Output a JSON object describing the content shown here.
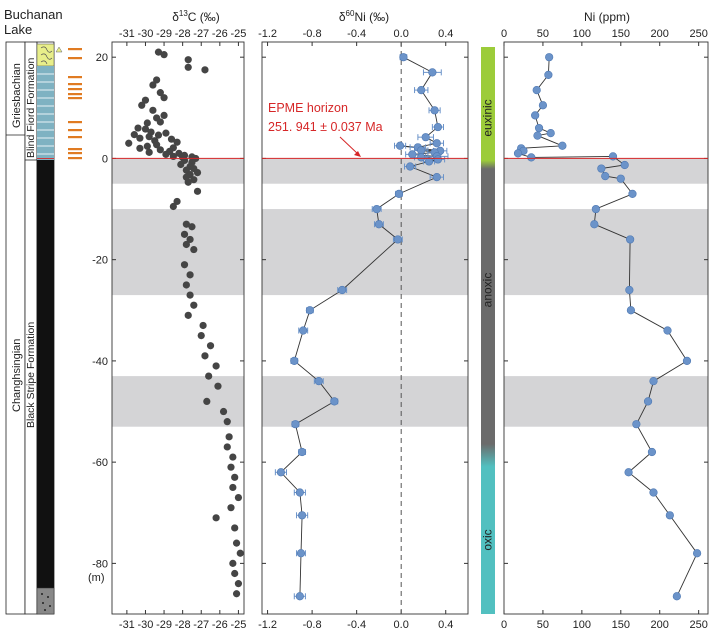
{
  "strat": {
    "location_line1": "Buchanan",
    "location_line2": "Lake",
    "stage_upper": "Griesbachian",
    "stage_lower": "Changhsingian",
    "formation_upper": "Blind Fiord Formation",
    "formation_lower": "Black Stripe Formation"
  },
  "depth_axis": {
    "ticks": [
      20,
      0,
      -20,
      -40,
      -60,
      -80
    ],
    "unit_label": "(m)",
    "range": [
      -90,
      23
    ]
  },
  "epme": {
    "label_line1": "EPME horizon",
    "label_line2": "251. 941 ± 0.037 Ma",
    "depth": 0,
    "color": "#d62728"
  },
  "grey_bands": [
    [
      -5,
      0
    ],
    [
      -27,
      -10
    ],
    [
      -53,
      -43
    ]
  ],
  "redox": {
    "labels": [
      "euxinic",
      "anoxic",
      "oxic"
    ],
    "colors": {
      "euxinic": "#9ccc3a",
      "anoxic": "#6b6b6b",
      "oxic": "#52c0c0"
    }
  },
  "chart_data": [
    {
      "type": "scatter",
      "title": "δ13C (‰)",
      "title_base": "δ",
      "title_sup": "13",
      "title_rest": "C (‰)",
      "xlim": [
        -31.8,
        -24.7
      ],
      "ticks": [
        -31,
        -30,
        -29,
        -28,
        -27,
        -26,
        -25
      ],
      "tick_labels": [
        "-31",
        "-30",
        "-29",
        "-28",
        "-27",
        "-26",
        "-25"
      ],
      "color": "#454545",
      "points": [
        [
          -29.3,
          21
        ],
        [
          -29.0,
          20.5
        ],
        [
          -27.7,
          19.5
        ],
        [
          -27.7,
          18
        ],
        [
          -26.8,
          17.5
        ],
        [
          -29.4,
          15.5
        ],
        [
          -29.6,
          14.5
        ],
        [
          -29.2,
          13
        ],
        [
          -29.0,
          12
        ],
        [
          -30.0,
          11.5
        ],
        [
          -30.2,
          10.5
        ],
        [
          -29.6,
          9.5
        ],
        [
          -29.0,
          8.5
        ],
        [
          -29.4,
          8
        ],
        [
          -29.2,
          7.2
        ],
        [
          -29.9,
          7
        ],
        [
          -30.4,
          6
        ],
        [
          -30.0,
          5.8
        ],
        [
          -29.7,
          5.2
        ],
        [
          -28.9,
          5
        ],
        [
          -30.6,
          4.7
        ],
        [
          -29.3,
          4.6
        ],
        [
          -29.8,
          4.3
        ],
        [
          -30.3,
          4
        ],
        [
          -28.6,
          3.8
        ],
        [
          -29.5,
          3.5
        ],
        [
          -30.9,
          3
        ],
        [
          -28.3,
          3.2
        ],
        [
          -29.4,
          2.7
        ],
        [
          -29.9,
          2.4
        ],
        [
          -28.5,
          2.1
        ],
        [
          -30.3,
          2
        ],
        [
          -29.2,
          1.7
        ],
        [
          -28.7,
          1.4
        ],
        [
          -29.8,
          1.2
        ],
        [
          -28.2,
          1
        ],
        [
          -28.9,
          0.8
        ],
        [
          -27.9,
          0.6
        ],
        [
          -28.5,
          0.4
        ],
        [
          -27.5,
          0.3
        ],
        [
          -28.0,
          0.2
        ],
        [
          -27.3,
          0
        ],
        [
          -27.9,
          -0.4
        ],
        [
          -27.5,
          -0.8
        ],
        [
          -28.1,
          -1.2
        ],
        [
          -27.6,
          -1.6
        ],
        [
          -27.4,
          -2
        ],
        [
          -27.8,
          -2.3
        ],
        [
          -27.2,
          -2.8
        ],
        [
          -27.6,
          -3.2
        ],
        [
          -27.8,
          -3.7
        ],
        [
          -27.4,
          -4.2
        ],
        [
          -27.7,
          -4.7
        ],
        [
          -27.2,
          -6.5
        ],
        [
          -28.3,
          -8.5
        ],
        [
          -28.5,
          -9.5
        ],
        [
          -27.8,
          -13
        ],
        [
          -27.5,
          -13.5
        ],
        [
          -27.9,
          -15
        ],
        [
          -27.6,
          -16
        ],
        [
          -27.8,
          -17
        ],
        [
          -27.4,
          -18
        ],
        [
          -27.9,
          -21
        ],
        [
          -27.6,
          -23
        ],
        [
          -27.8,
          -25
        ],
        [
          -27.6,
          -27
        ],
        [
          -27.4,
          -29
        ],
        [
          -27.7,
          -31
        ],
        [
          -26.9,
          -33
        ],
        [
          -27.0,
          -35
        ],
        [
          -26.5,
          -37
        ],
        [
          -26.8,
          -39
        ],
        [
          -26.2,
          -41
        ],
        [
          -26.6,
          -43
        ],
        [
          -26.1,
          -45
        ],
        [
          -26.7,
          -48
        ],
        [
          -25.8,
          -50
        ],
        [
          -25.6,
          -52
        ],
        [
          -25.5,
          -55
        ],
        [
          -25.6,
          -57
        ],
        [
          -25.3,
          -59
        ],
        [
          -25.4,
          -61
        ],
        [
          -25.2,
          -63
        ],
        [
          -25.3,
          -65
        ],
        [
          -25.0,
          -67
        ],
        [
          -25.4,
          -69
        ],
        [
          -26.2,
          -71
        ],
        [
          -25.2,
          -73
        ],
        [
          -25.1,
          -76
        ],
        [
          -24.9,
          -78
        ],
        [
          -25.3,
          -80
        ],
        [
          -25.2,
          -82
        ],
        [
          -25.0,
          -84
        ],
        [
          -25.1,
          -86
        ]
      ]
    },
    {
      "type": "line",
      "title": "δ60Ni (‰)",
      "title_base": "δ",
      "title_sup": "60",
      "title_rest": "Ni (‰)",
      "xlim": [
        -1.25,
        0.6
      ],
      "ticks": [
        -1.2,
        -0.8,
        -0.4,
        0.0,
        0.4
      ],
      "tick_labels": [
        "-1.2",
        "-0.8",
        "-0.4",
        "0.0",
        "0.4"
      ],
      "zero_dashed": true,
      "color": "#6b93c9",
      "points": [
        {
          "x": 0.02,
          "y": 20,
          "err": 0.03
        },
        {
          "x": 0.28,
          "y": 17,
          "err": 0.08
        },
        {
          "x": 0.18,
          "y": 13.5,
          "err": 0.06
        },
        {
          "x": 0.3,
          "y": 9.5,
          "err": 0.05
        },
        {
          "x": 0.33,
          "y": 6.2,
          "err": 0.05
        },
        {
          "x": 0.22,
          "y": 4.2,
          "err": 0.07
        },
        {
          "x": 0.32,
          "y": 3,
          "err": 0.06
        },
        {
          "x": 0.15,
          "y": 2.2,
          "err": 0.07
        },
        {
          "x": -0.01,
          "y": 2.5,
          "err": 0.05
        },
        {
          "x": 0.35,
          "y": 1.5,
          "err": 0.06
        },
        {
          "x": 0.18,
          "y": 1.6,
          "err": 0.06
        },
        {
          "x": 0.3,
          "y": 1.2,
          "err": 0.06
        },
        {
          "x": 0.1,
          "y": 0.8,
          "err": 0.06
        },
        {
          "x": 0.32,
          "y": 0.4,
          "err": 0.1
        },
        {
          "x": 0.18,
          "y": 0.2,
          "err": 0.06
        },
        {
          "x": 0.33,
          "y": -0.2,
          "err": 0.06
        },
        {
          "x": 0.25,
          "y": -0.6,
          "err": 0.05
        },
        {
          "x": 0.08,
          "y": -1.6,
          "err": 0.05
        },
        {
          "x": 0.32,
          "y": -3.7,
          "err": 0.06
        },
        {
          "x": -0.02,
          "y": -7,
          "err": 0.03
        },
        {
          "x": -0.22,
          "y": -10,
          "err": 0.04
        },
        {
          "x": -0.2,
          "y": -13,
          "err": 0.04
        },
        {
          "x": -0.03,
          "y": -16,
          "err": 0.04
        },
        {
          "x": -0.53,
          "y": -26,
          "err": 0.04
        },
        {
          "x": -0.82,
          "y": -30,
          "err": 0.03
        },
        {
          "x": -0.88,
          "y": -34,
          "err": 0.04
        },
        {
          "x": -0.96,
          "y": -40,
          "err": 0.03
        },
        {
          "x": -0.74,
          "y": -44,
          "err": 0.04
        },
        {
          "x": -0.6,
          "y": -48,
          "err": 0.03
        },
        {
          "x": -0.95,
          "y": -52.5,
          "err": 0.03
        },
        {
          "x": -0.89,
          "y": -58,
          "err": 0.03
        },
        {
          "x": -1.08,
          "y": -62,
          "err": 0.05
        },
        {
          "x": -0.91,
          "y": -66,
          "err": 0.05
        },
        {
          "x": -0.89,
          "y": -70.5,
          "err": 0.05
        },
        {
          "x": -0.9,
          "y": -78,
          "err": 0.04
        },
        {
          "x": -0.91,
          "y": -86.5,
          "err": 0.05
        }
      ]
    },
    {
      "type": "line",
      "title": "Ni (ppm)",
      "xlim": [
        0,
        262
      ],
      "ticks": [
        0,
        50,
        100,
        150,
        200,
        250
      ],
      "tick_labels": [
        "0",
        "50",
        "100",
        "150",
        "200",
        "250"
      ],
      "color": "#6b93c9",
      "points": [
        [
          58,
          20
        ],
        [
          57,
          16.5
        ],
        [
          42,
          13.5
        ],
        [
          50,
          10.5
        ],
        [
          40,
          8.5
        ],
        [
          45,
          6
        ],
        [
          60,
          5
        ],
        [
          43,
          4.5
        ],
        [
          75,
          2.5
        ],
        [
          22,
          2
        ],
        [
          25,
          1.5
        ],
        [
          18,
          1
        ],
        [
          35,
          0.2
        ],
        [
          140,
          0.4
        ],
        [
          155,
          -1.3
        ],
        [
          125,
          -2
        ],
        [
          130,
          -3.5
        ],
        [
          150,
          -4
        ],
        [
          165,
          -7
        ],
        [
          118,
          -10
        ],
        [
          116,
          -13
        ],
        [
          162,
          -16
        ],
        [
          161,
          -26
        ],
        [
          163,
          -30
        ],
        [
          210,
          -34
        ],
        [
          235,
          -40
        ],
        [
          192,
          -44
        ],
        [
          185,
          -48
        ],
        [
          170,
          -52.5
        ],
        [
          190,
          -58
        ],
        [
          160,
          -62
        ],
        [
          192,
          -66
        ],
        [
          213,
          -70.5
        ],
        [
          248,
          -78
        ],
        [
          222,
          -86.5
        ]
      ]
    }
  ]
}
